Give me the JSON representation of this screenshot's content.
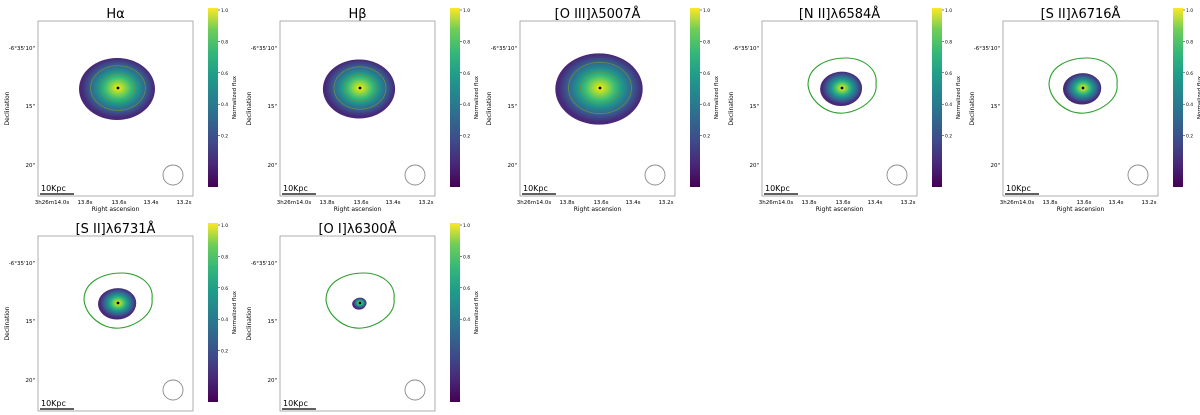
{
  "figure": {
    "colormap": "viridis",
    "colors": {
      "contour_green": "#2ca02c",
      "frame": "#9a9a9a",
      "center_dot": "#000000",
      "beam_circle": "#8a8a8a",
      "inner_contour": "#7a8f3c"
    },
    "panels": [
      {
        "title": "Hα",
        "ylabel": "Declination",
        "xlabel": "Right ascension",
        "yticks": [
          "-6°35'10\"",
          "15\"",
          "20\""
        ],
        "xticks": [
          "3h26m14.0s",
          "13.8s",
          "13.6s",
          "13.4s",
          "13.2s"
        ],
        "scalebar": "10Kpc",
        "colorbar_label": "Normalized flux",
        "colorbar_ticks": [
          "1.0",
          "0.8",
          "0.6",
          "0.4",
          "0.2"
        ],
        "emission_extent": 1.0,
        "green_outline": false,
        "inner_contours": true
      },
      {
        "title": "Hβ",
        "ylabel": "Declination",
        "xlabel": "Right ascension",
        "yticks": [
          "-6°35'10\"",
          "15\"",
          "20\""
        ],
        "xticks": [
          "3h26m14.0s",
          "13.8s",
          "13.6s",
          "13.4s",
          "13.2s"
        ],
        "scalebar": "10Kpc",
        "colorbar_label": "Normalized flux",
        "colorbar_ticks": [
          "1.0",
          "0.8",
          "0.6",
          "0.4",
          "0.2"
        ],
        "emission_extent": 0.95,
        "green_outline": false,
        "inner_contours": true
      },
      {
        "title": "[O III]λ5007Å",
        "ylabel": "Declination",
        "xlabel": "Right ascension",
        "yticks": [
          "-6°35'10\"",
          "15\"",
          "20\""
        ],
        "xticks": [
          "3h26m14.0s",
          "13.8s",
          "13.6s",
          "13.4s",
          "13.2s"
        ],
        "scalebar": "10Kpc",
        "colorbar_label": "Normalized flux",
        "colorbar_ticks": [
          "1.0",
          "0.8",
          "0.6",
          "0.4",
          "0.2"
        ],
        "emission_extent": 1.15,
        "green_outline": false,
        "inner_contours": true
      },
      {
        "title": "[N II]λ6584Å",
        "ylabel": "Declination",
        "xlabel": "Right ascension",
        "yticks": [
          "-6°35'10\"",
          "15\"",
          "20\""
        ],
        "xticks": [
          "3h26m14.0s",
          "13.8s",
          "13.6s",
          "13.4s",
          "13.2s"
        ],
        "scalebar": "10Kpc",
        "colorbar_label": "Normalized flux",
        "colorbar_ticks": [
          "1.0",
          "0.8",
          "0.6",
          "0.4",
          "0.2"
        ],
        "emission_extent": 0.55,
        "green_outline": true,
        "inner_contours": false
      },
      {
        "title": "[S II]λ6716Å",
        "ylabel": "Declination",
        "xlabel": "Right ascension",
        "yticks": [
          "-6°35'10\"",
          "15\"",
          "20\""
        ],
        "xticks": [
          "3h26m14.0s",
          "13.8s",
          "13.6s",
          "13.4s",
          "13.2s"
        ],
        "scalebar": "10Kpc",
        "colorbar_label": "Normalized flux",
        "colorbar_ticks": [
          "1.0",
          "0.8",
          "0.6",
          "0.4",
          "0.2"
        ],
        "emission_extent": 0.5,
        "green_outline": true,
        "inner_contours": false
      },
      {
        "title": "[S II]λ6731Å",
        "ylabel": "Declination",
        "xlabel": "Right ascension",
        "yticks": [
          "-6°35'10\"",
          "15\"",
          "20\""
        ],
        "xticks": [
          "3h26m14.0s",
          "13.8s",
          "13.6s",
          "13.4s",
          "13.2s"
        ],
        "scalebar": "10Kpc",
        "colorbar_label": "Normalized flux",
        "colorbar_ticks": [
          "1.0",
          "0.8",
          "0.6",
          "0.4",
          "0.2"
        ],
        "emission_extent": 0.5,
        "green_outline": true,
        "inner_contours": false
      },
      {
        "title": "[O I]λ6300Å",
        "ylabel": "Declination",
        "xlabel": "Right ascension",
        "yticks": [
          "-6°35'10\"",
          "15\"",
          "20\""
        ],
        "xticks": [
          "3h26m14.0s",
          "13.8s",
          "13.6s",
          "13.4s",
          "13.2s"
        ],
        "scalebar": "10Kpc",
        "colorbar_label": "Normalized flux",
        "colorbar_ticks": [
          "1.0",
          "0.8",
          "0.6",
          "0.4"
        ],
        "emission_extent": 0.18,
        "green_outline": true,
        "inner_contours": false
      }
    ]
  }
}
